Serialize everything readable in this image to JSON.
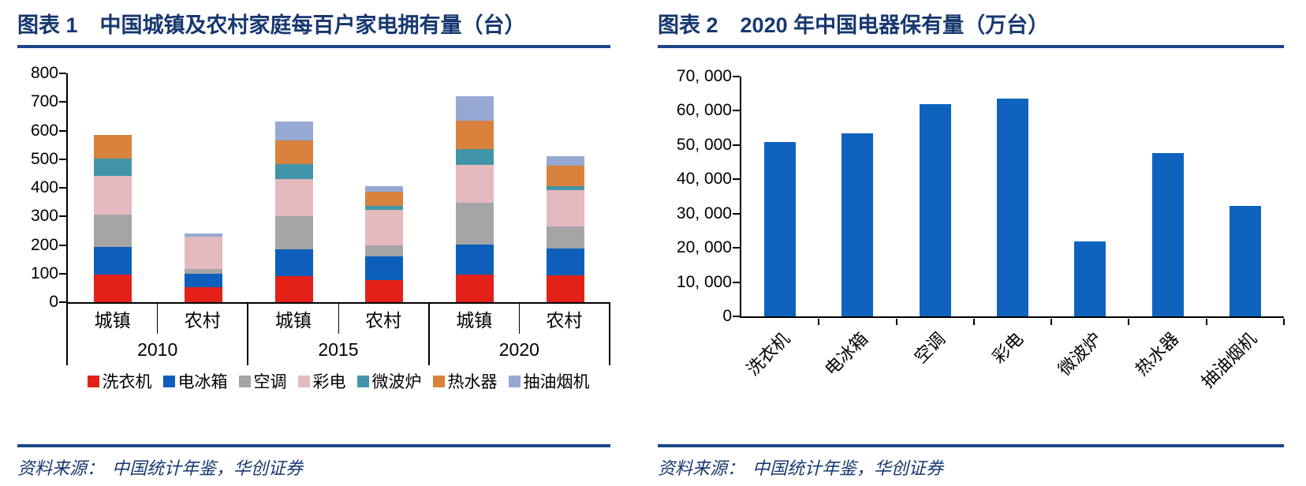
{
  "figure1": {
    "title_prefix": "图表 1",
    "title": "中国城镇及农村家庭每百户家电拥有量（台）",
    "source_label": "资料来源：",
    "source_text": "中国统计年鉴，华创证券"
  },
  "figure2": {
    "title_prefix": "图表 2",
    "title": "2020 年中国电器保有量（万台）",
    "source_label": "资料来源：",
    "source_text": "中国统计年鉴，华创证券"
  },
  "colors": {
    "title_navy": "#17386F",
    "rule_blue": "#1C4689",
    "axis_black": "#000000"
  },
  "chart_data": [
    {
      "type": "bar",
      "stacked": true,
      "title": "中国城镇及农村家庭每百户家电拥有量（台）",
      "ylabel": "",
      "xlabel": "",
      "ylim": [
        0,
        800
      ],
      "yticks": [
        0,
        100,
        200,
        300,
        400,
        500,
        600,
        700,
        800
      ],
      "grid": false,
      "legend_position": "bottom",
      "categories": [
        "2010 城镇",
        "2010 农村",
        "2015 城镇",
        "2015 农村",
        "2020 城镇",
        "2020 农村"
      ],
      "groups": [
        {
          "year": "2010",
          "left": "城镇",
          "right": "农村"
        },
        {
          "year": "2015",
          "left": "城镇",
          "right": "农村"
        },
        {
          "year": "2020",
          "left": "城镇",
          "right": "农村"
        }
      ],
      "series": [
        {
          "name": "洗衣机",
          "color": "#E32119",
          "values": [
            96,
            52,
            92,
            78,
            96,
            95
          ]
        },
        {
          "name": "电冰箱",
          "color": "#0D5FBB",
          "values": [
            97,
            46,
            94,
            81,
            106,
            94
          ]
        },
        {
          "name": "空调",
          "color": "#A6A4A4",
          "values": [
            112,
            18,
            114,
            41,
            147,
            75
          ]
        },
        {
          "name": "彩电",
          "color": "#E5BABF",
          "values": [
            137,
            112,
            130,
            122,
            131,
            129
          ]
        },
        {
          "name": "微波炉",
          "color": "#4295A8",
          "values": [
            59,
            0,
            52,
            16,
            56,
            13
          ]
        },
        {
          "name": "热水器",
          "color": "#D9823E",
          "values": [
            85,
            0,
            85,
            49,
            99,
            70
          ]
        },
        {
          "name": "抽油烟机",
          "color": "#97A8D2",
          "values": [
            0,
            11,
            65,
            18,
            86,
            35
          ]
        }
      ]
    },
    {
      "type": "bar",
      "stacked": false,
      "title": "2020 年中国电器保有量（万台）",
      "ylabel": "",
      "xlabel": "",
      "ylim": [
        0,
        70000
      ],
      "grid": false,
      "bar_color": "#0F63BE",
      "x_label_rotation": -45,
      "yticks": [
        {
          "value": 0,
          "label": "0"
        },
        {
          "value": 10000,
          "label": "10, 000"
        },
        {
          "value": 20000,
          "label": "20, 000"
        },
        {
          "value": 30000,
          "label": "30, 000"
        },
        {
          "value": 40000,
          "label": "40, 000"
        },
        {
          "value": 50000,
          "label": "50, 000"
        },
        {
          "value": 60000,
          "label": "60, 000"
        },
        {
          "value": 70000,
          "label": "70, 000"
        }
      ],
      "categories": [
        "洗衣机",
        "电冰箱",
        "空调",
        "彩电",
        "微波炉",
        "热水器",
        "抽油烟机"
      ],
      "values": [
        51000,
        53500,
        62000,
        63500,
        21800,
        47700,
        32300
      ]
    }
  ]
}
